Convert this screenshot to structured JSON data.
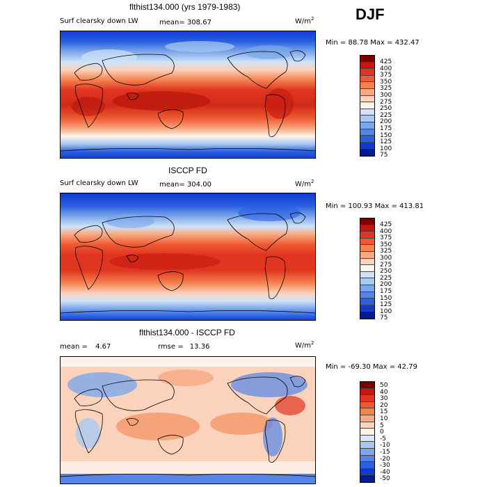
{
  "season": "DJF",
  "panels": [
    {
      "title": "flthist134.000 (yrs 1979-1983)",
      "variable": "Surf clearsky down LW",
      "mean_label": "mean=",
      "mean_value": "308.67",
      "units": "W/m",
      "units_exp": "2",
      "min_max": "Min =  88.78 Max = 432.47",
      "levels": [
        "425",
        "400",
        "375",
        "350",
        "325",
        "300",
        "275",
        "250",
        "225",
        "200",
        "175",
        "150",
        "125",
        "100",
        "75"
      ],
      "colors": [
        "#7a0000",
        "#c3170f",
        "#e03520",
        "#ef5a32",
        "#f5834f",
        "#f8a981",
        "#fbd2bc",
        "#fef3ea",
        "#cfe2f7",
        "#a9c9f0",
        "#7ca7ea",
        "#5685e7",
        "#2b5fe2",
        "#0d3ccc",
        "#021a92"
      ]
    },
    {
      "title": "ISCCP FD",
      "variable": "Surf clearsky down LW",
      "mean_label": "mean=",
      "mean_value": "304.00",
      "units": "W/m",
      "units_exp": "2",
      "min_max": "Min = 100.93 Max = 413.81",
      "levels": [
        "425",
        "400",
        "375",
        "350",
        "325",
        "300",
        "275",
        "250",
        "225",
        "200",
        "175",
        "150",
        "125",
        "100",
        "75"
      ],
      "colors": [
        "#7a0000",
        "#c3170f",
        "#e03520",
        "#ef5a32",
        "#f5834f",
        "#f8a981",
        "#fbd2bc",
        "#fef3ea",
        "#cfe2f7",
        "#a9c9f0",
        "#7ca7ea",
        "#5685e7",
        "#2b5fe2",
        "#0d3ccc",
        "#021a92"
      ]
    },
    {
      "title": "flthist134.000 - ISCCP FD",
      "mean_label": "mean =",
      "mean_value": "4.67",
      "rmse_label": "rmse =",
      "rmse_value": "13.36",
      "units": "W/m",
      "units_exp": "2",
      "min_max": "Min = -69.30 Max =  42.79",
      "levels": [
        "50",
        "40",
        "30",
        "20",
        "15",
        "10",
        "5",
        "0",
        "-5",
        "-10",
        "-15",
        "-20",
        "-30",
        "-40",
        "-50"
      ],
      "colors": [
        "#7a0000",
        "#c3170f",
        "#e03520",
        "#ef5a32",
        "#f5834f",
        "#f8a981",
        "#fbd2bc",
        "#fef3ea",
        "#d6e7fa",
        "#a9c9f0",
        "#7ca7ea",
        "#5685e7",
        "#2b5fe2",
        "#0d3ccc",
        "#021a92"
      ]
    }
  ],
  "chart_data": [
    {
      "type": "heatmap",
      "title": "flthist134.000 (yrs 1979-1983)",
      "subtitle": "Surf clearsky down LW",
      "season": "DJF",
      "units": "W/m2",
      "mean": 308.67,
      "min": 88.78,
      "max": 432.47,
      "colorbar_levels": [
        75,
        100,
        125,
        150,
        175,
        200,
        225,
        250,
        275,
        300,
        325,
        350,
        375,
        400,
        425
      ]
    },
    {
      "type": "heatmap",
      "title": "ISCCP FD",
      "subtitle": "Surf clearsky down LW",
      "season": "DJF",
      "units": "W/m2",
      "mean": 304.0,
      "min": 100.93,
      "max": 413.81,
      "colorbar_levels": [
        75,
        100,
        125,
        150,
        175,
        200,
        225,
        250,
        275,
        300,
        325,
        350,
        375,
        400,
        425
      ]
    },
    {
      "type": "heatmap",
      "title": "flthist134.000 - ISCCP FD",
      "season": "DJF",
      "units": "W/m2",
      "mean": 4.67,
      "rmse": 13.36,
      "min": -69.3,
      "max": 42.79,
      "colorbar_levels": [
        -50,
        -40,
        -30,
        -20,
        -15,
        -10,
        -5,
        0,
        5,
        10,
        15,
        20,
        30,
        40,
        50
      ]
    }
  ]
}
